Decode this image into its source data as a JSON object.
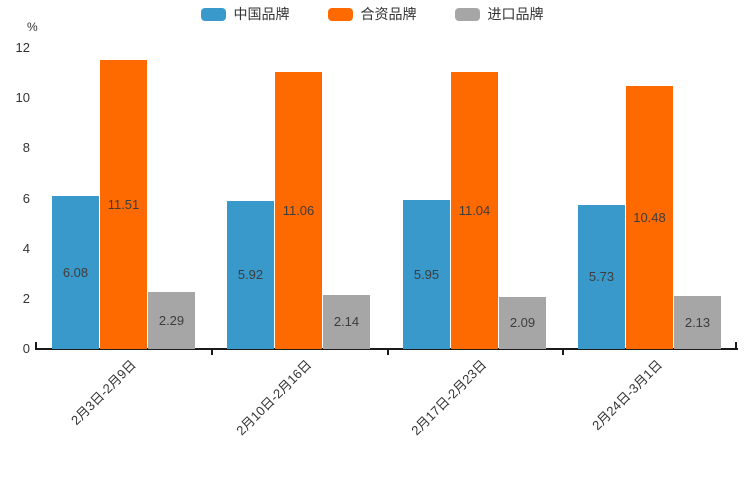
{
  "chart_data": {
    "type": "bar",
    "title": "",
    "unit_label": "%",
    "categories": [
      "2月3日-2月9日",
      "2月10日-2月16日",
      "2月17日-2月23日",
      "2月24日-3月1日"
    ],
    "series": [
      {
        "name": "中国品牌",
        "color": "#3999ca",
        "values": [
          6.08,
          5.92,
          5.95,
          5.73
        ]
      },
      {
        "name": "合资品牌",
        "color": "#ff6a00",
        "values": [
          11.51,
          11.06,
          11.04,
          10.48
        ]
      },
      {
        "name": "进口品牌",
        "color": "#a6a6a6",
        "values": [
          2.29,
          2.14,
          2.09,
          2.13
        ]
      }
    ],
    "ylim": [
      0,
      12
    ],
    "yticks": [
      0,
      2,
      4,
      6,
      8,
      10,
      12
    ],
    "legend_position": "top",
    "grid": false,
    "value_label_position": "inside-center"
  },
  "colors": {
    "background": "#ffffff",
    "axis": "#1a1a1a",
    "tick_text": "#333333",
    "value_label_text": "#3d3d3d"
  }
}
